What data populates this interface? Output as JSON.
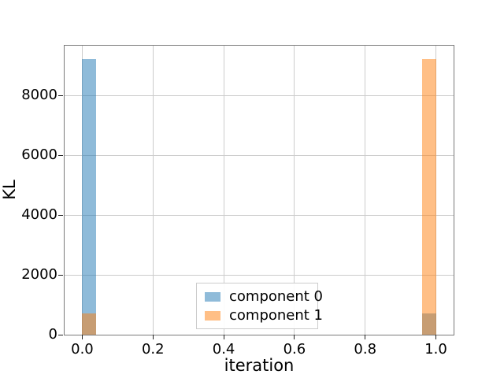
{
  "figure": {
    "background": "#ffffff"
  },
  "chart_data": {
    "type": "bar",
    "title": "",
    "xlabel": "iteration",
    "ylabel": "KL",
    "xlim": [
      -0.05,
      1.05
    ],
    "ylim": [
      0,
      9660
    ],
    "grid": true,
    "x_ticks": [
      0.0,
      0.2,
      0.4,
      0.6,
      0.8,
      1.0
    ],
    "x_tick_labels": [
      "0.0",
      "0.2",
      "0.4",
      "0.6",
      "0.8",
      "1.0"
    ],
    "y_ticks": [
      0,
      2000,
      4000,
      6000,
      8000
    ],
    "y_tick_labels": [
      "0",
      "2000",
      "4000",
      "6000",
      "8000"
    ],
    "bins": [
      {
        "x_start": 0.0,
        "x_end": 0.04
      },
      {
        "x_start": 0.96,
        "x_end": 1.0
      }
    ],
    "series": [
      {
        "name": "component 0",
        "color": "#1f77b4",
        "alpha": 0.5,
        "values": [
          9200,
          700
        ]
      },
      {
        "name": "component 1",
        "color": "#ff7f0e",
        "alpha": 0.5,
        "values": [
          700,
          9200
        ]
      }
    ],
    "legend": {
      "position": "lower center",
      "items": [
        "component 0",
        "component 1"
      ]
    }
  },
  "colors": {
    "grid": "#cccccc",
    "spine": "#7a7a7a",
    "tick": "#222222",
    "text": "#000000",
    "legend_border": "#cccccc",
    "overlap_rendered": "#c79d73",
    "blue_rendered": "#8fbbd9",
    "orange_rendered": "#ffbf86"
  }
}
